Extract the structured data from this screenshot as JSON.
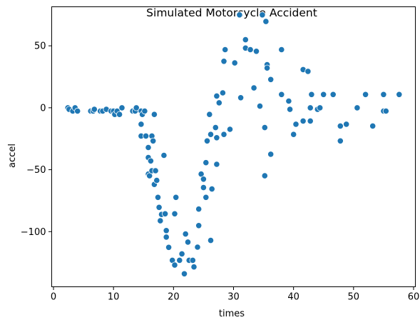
{
  "chart_data": {
    "type": "scatter",
    "title": "Simulated Motorcycle Accident",
    "xlabel": "times",
    "ylabel": "accel",
    "xlim": [
      -0.3,
      60.3
    ],
    "ylim": [
      -144.5,
      81.5
    ],
    "xticks": [
      0,
      10,
      20,
      30,
      40,
      50,
      60
    ],
    "xtick_labels": [
      "0",
      "10",
      "20",
      "30",
      "40",
      "50",
      "60"
    ],
    "yticks": [
      -100,
      -50,
      0,
      50
    ],
    "ytick_labels": [
      "−100",
      "−50",
      "0",
      "50"
    ],
    "grid": false,
    "marker_color": "#1f77b4",
    "marker_edge_color": "#ffffff",
    "points": [
      [
        2.4,
        0.0
      ],
      [
        2.6,
        -1.3
      ],
      [
        3.2,
        -2.7
      ],
      [
        3.6,
        0.0
      ],
      [
        4.0,
        -2.7
      ],
      [
        6.2,
        -2.7
      ],
      [
        6.6,
        -2.7
      ],
      [
        6.8,
        -1.3
      ],
      [
        7.8,
        -2.7
      ],
      [
        8.2,
        -2.7
      ],
      [
        8.8,
        -1.3
      ],
      [
        9.6,
        -2.7
      ],
      [
        10.0,
        -2.7
      ],
      [
        10.2,
        -5.4
      ],
      [
        10.6,
        -2.7
      ],
      [
        11.0,
        -5.4
      ],
      [
        11.4,
        0.0
      ],
      [
        13.2,
        -2.7
      ],
      [
        13.6,
        -2.7
      ],
      [
        13.8,
        0.0
      ],
      [
        14.6,
        -13.3
      ],
      [
        14.6,
        -2.7
      ],
      [
        14.6,
        -22.8
      ],
      [
        14.8,
        -5.4
      ],
      [
        15.2,
        -2.7
      ],
      [
        15.4,
        -22.8
      ],
      [
        15.8,
        -32.1
      ],
      [
        15.8,
        -40.2
      ],
      [
        15.8,
        -53.5
      ],
      [
        16.0,
        -54.9
      ],
      [
        16.2,
        -42.9
      ],
      [
        16.4,
        -50.8
      ],
      [
        16.4,
        -22.8
      ],
      [
        16.6,
        -26.8
      ],
      [
        16.8,
        -61.9
      ],
      [
        16.8,
        -5.4
      ],
      [
        17.0,
        -50.8
      ],
      [
        17.2,
        -58.6
      ],
      [
        17.4,
        -72.3
      ],
      [
        17.6,
        -80.4
      ],
      [
        17.8,
        -91.2
      ],
      [
        18.0,
        -86.1
      ],
      [
        18.4,
        -38.4
      ],
      [
        18.6,
        -85.6
      ],
      [
        18.8,
        -104.4
      ],
      [
        18.8,
        -99.1
      ],
      [
        19.2,
        -112.7
      ],
      [
        19.8,
        -123.1
      ],
      [
        20.2,
        -127.0
      ],
      [
        20.2,
        -85.6
      ],
      [
        20.4,
        -72.3
      ],
      [
        21.0,
        -123.1
      ],
      [
        21.4,
        -117.9
      ],
      [
        21.8,
        -134.0
      ],
      [
        22.0,
        -101.9
      ],
      [
        22.4,
        -108.4
      ],
      [
        22.6,
        -123.1
      ],
      [
        23.2,
        -123.1
      ],
      [
        23.4,
        -128.5
      ],
      [
        24.0,
        -112.5
      ],
      [
        24.2,
        -95.1
      ],
      [
        24.2,
        -81.8
      ],
      [
        24.6,
        -53.5
      ],
      [
        25.0,
        -64.4
      ],
      [
        25.0,
        -57.6
      ],
      [
        25.4,
        -72.3
      ],
      [
        25.4,
        -44.3
      ],
      [
        25.6,
        -26.8
      ],
      [
        26.0,
        -5.4
      ],
      [
        26.2,
        -107.1
      ],
      [
        26.2,
        -21.5
      ],
      [
        26.4,
        -65.6
      ],
      [
        27.0,
        -16.0
      ],
      [
        27.2,
        -45.6
      ],
      [
        27.2,
        -24.2
      ],
      [
        27.2,
        9.5
      ],
      [
        27.6,
        4.0
      ],
      [
        28.2,
        12.0
      ],
      [
        28.4,
        -21.5
      ],
      [
        28.4,
        37.5
      ],
      [
        28.6,
        46.9
      ],
      [
        29.4,
        -17.4
      ],
      [
        30.2,
        36.2
      ],
      [
        31.0,
        75.0
      ],
      [
        31.2,
        8.1
      ],
      [
        32.0,
        54.9
      ],
      [
        32.0,
        48.2
      ],
      [
        32.8,
        46.9
      ],
      [
        33.4,
        16.0
      ],
      [
        33.8,
        45.6
      ],
      [
        34.4,
        1.3
      ],
      [
        34.8,
        75.0
      ],
      [
        35.2,
        -16.0
      ],
      [
        35.2,
        -54.9
      ],
      [
        35.4,
        69.6
      ],
      [
        35.6,
        34.8
      ],
      [
        35.6,
        32.1
      ],
      [
        36.2,
        -37.5
      ],
      [
        36.2,
        22.8
      ],
      [
        38.0,
        46.9
      ],
      [
        38.0,
        10.7
      ],
      [
        39.2,
        5.4
      ],
      [
        39.4,
        -1.3
      ],
      [
        40.0,
        -21.5
      ],
      [
        40.4,
        -13.3
      ],
      [
        41.6,
        30.8
      ],
      [
        41.6,
        -10.7
      ],
      [
        42.4,
        29.4
      ],
      [
        42.8,
        0.0
      ],
      [
        42.8,
        -10.7
      ],
      [
        43.0,
        10.7
      ],
      [
        44.0,
        -1.3
      ],
      [
        44.4,
        0.0
      ],
      [
        45.0,
        10.7
      ],
      [
        46.6,
        10.7
      ],
      [
        47.8,
        -26.8
      ],
      [
        47.8,
        -14.7
      ],
      [
        48.8,
        -13.3
      ],
      [
        50.6,
        0.0
      ],
      [
        52.0,
        10.7
      ],
      [
        53.2,
        -14.7
      ],
      [
        55.0,
        -2.7
      ],
      [
        55.0,
        10.7
      ],
      [
        55.4,
        -2.7
      ],
      [
        57.6,
        10.7
      ]
    ]
  }
}
